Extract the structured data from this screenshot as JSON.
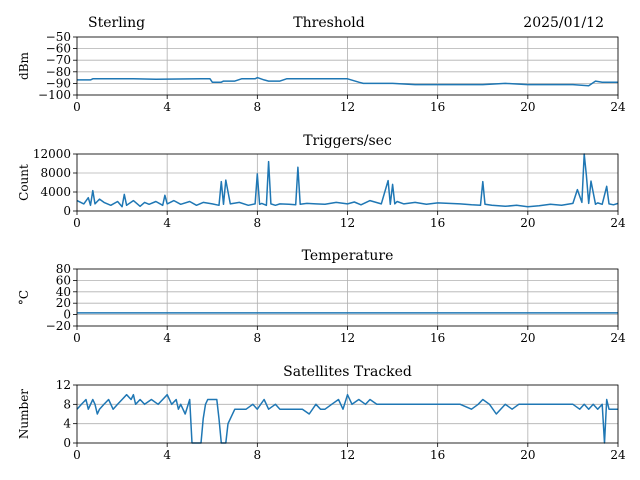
{
  "header": {
    "left": "Sterling",
    "center": "Threshold",
    "right": "2025/01/12"
  },
  "style": {
    "line_color": "#1f77b4",
    "grid_color": "#b0b0b0"
  },
  "chart_data": [
    {
      "type": "line",
      "title": "",
      "xlabel": "",
      "ylabel": "dBm",
      "xlim": [
        0,
        24
      ],
      "ylim": [
        -100,
        -50
      ],
      "xticks": [
        0,
        4,
        8,
        12,
        16,
        20,
        24
      ],
      "yticks": [
        -100,
        -90,
        -80,
        -70,
        -60,
        -50
      ],
      "ytick_labels": [
        "−100",
        "−90",
        "−80",
        "−70",
        "−60",
        "−50"
      ],
      "grid": true,
      "series": [
        {
          "x": [
            0,
            0.6,
            0.7,
            2.5,
            3.5,
            5.5,
            5.9,
            6.0,
            6.4,
            6.5,
            7.0,
            7.3,
            7.9,
            8.0,
            8.3,
            8.5,
            9.0,
            9.3,
            9.6,
            10.0,
            12.0,
            12.5,
            12.7,
            14.0,
            15.0,
            16.0,
            18.0,
            19.0,
            20.0,
            22.0,
            22.7,
            23.0,
            23.3,
            24.0
          ],
          "y": [
            -87,
            -87,
            -86,
            -86,
            -86.5,
            -86,
            -86,
            -89,
            -89,
            -88,
            -88,
            -86,
            -86,
            -85,
            -87,
            -88,
            -88,
            -86,
            -86,
            -86,
            -86,
            -89,
            -90,
            -90,
            -91,
            -91,
            -91,
            -90,
            -91,
            -91,
            -92,
            -88,
            -89,
            -89
          ]
        }
      ]
    },
    {
      "type": "line",
      "title": "Triggers/sec",
      "xlabel": "",
      "ylabel": "Count",
      "xlim": [
        0,
        24
      ],
      "ylim": [
        0,
        12000
      ],
      "xticks": [
        0,
        4,
        8,
        12,
        16,
        20,
        24
      ],
      "yticks": [
        0,
        4000,
        8000,
        12000
      ],
      "ytick_labels": [
        "0",
        "4000",
        "8000",
        "12000"
      ],
      "grid": true,
      "series": [
        {
          "x": [
            0,
            0.3,
            0.5,
            0.6,
            0.7,
            0.8,
            1.0,
            1.2,
            1.5,
            1.8,
            2.0,
            2.1,
            2.2,
            2.5,
            2.8,
            3.0,
            3.2,
            3.5,
            3.8,
            3.9,
            4.0,
            4.3,
            4.6,
            5.0,
            5.3,
            5.6,
            6.0,
            6.3,
            6.4,
            6.5,
            6.6,
            6.8,
            7.2,
            7.6,
            7.9,
            8.0,
            8.1,
            8.2,
            8.4,
            8.5,
            8.6,
            8.8,
            9.0,
            9.4,
            9.7,
            9.8,
            9.9,
            10.2,
            10.6,
            11.0,
            11.5,
            12.0,
            12.3,
            12.6,
            13.0,
            13.5,
            13.8,
            13.9,
            14.0,
            14.1,
            14.2,
            14.5,
            15.0,
            15.5,
            16.0,
            16.5,
            17.0,
            17.5,
            17.9,
            18.0,
            18.1,
            18.4,
            19.0,
            19.5,
            20.0,
            20.5,
            21.0,
            21.5,
            22.0,
            22.2,
            22.4,
            22.5,
            22.6,
            22.7,
            22.8,
            23.0,
            23.1,
            23.3,
            23.5,
            23.6,
            23.8,
            24.0
          ],
          "y": [
            2200,
            1500,
            2800,
            1200,
            4300,
            1500,
            2500,
            1800,
            1200,
            2000,
            900,
            3500,
            1200,
            2200,
            1000,
            1800,
            1400,
            2000,
            1200,
            3300,
            1500,
            2200,
            1400,
            2000,
            1200,
            1800,
            1500,
            1200,
            6200,
            1400,
            6500,
            1500,
            1800,
            1200,
            1500,
            7800,
            1400,
            1600,
            1200,
            10400,
            1500,
            1200,
            1500,
            1400,
            1300,
            9200,
            1400,
            1600,
            1500,
            1400,
            1800,
            1500,
            1900,
            1300,
            2200,
            1500,
            6400,
            1400,
            5600,
            1500,
            2000,
            1500,
            1800,
            1400,
            1700,
            1600,
            1500,
            1300,
            1200,
            6200,
            1400,
            1200,
            1000,
            1200,
            900,
            1100,
            1400,
            1200,
            1600,
            4500,
            1800,
            12000,
            7500,
            1600,
            6300,
            1400,
            1700,
            1400,
            5200,
            1500,
            1300,
            1600
          ]
        }
      ]
    },
    {
      "type": "line",
      "title": "Temperature",
      "xlabel": "",
      "ylabel": "°C",
      "xlim": [
        0,
        24
      ],
      "ylim": [
        -20,
        80
      ],
      "xticks": [
        0,
        4,
        8,
        12,
        16,
        20,
        24
      ],
      "yticks": [
        -20,
        0,
        20,
        40,
        60,
        80
      ],
      "ytick_labels": [
        "−20",
        "0",
        "20",
        "40",
        "60",
        "80"
      ],
      "grid": true,
      "series": [
        {
          "x": [
            0,
            24
          ],
          "y": [
            3,
            3
          ]
        }
      ]
    },
    {
      "type": "line",
      "title": "Satellites Tracked",
      "xlabel": "",
      "ylabel": "Number",
      "xlim": [
        0,
        24
      ],
      "ylim": [
        0,
        12
      ],
      "xticks": [
        0,
        4,
        8,
        12,
        16,
        20,
        24
      ],
      "yticks": [
        0,
        4,
        8,
        12
      ],
      "ytick_labels": [
        "0",
        "4",
        "8",
        "12"
      ],
      "grid": true,
      "series": [
        {
          "x": [
            0,
            0.2,
            0.4,
            0.5,
            0.7,
            0.8,
            0.9,
            1.0,
            1.2,
            1.4,
            1.6,
            1.8,
            2.0,
            2.2,
            2.4,
            2.5,
            2.6,
            2.8,
            3.0,
            3.3,
            3.6,
            3.8,
            4.0,
            4.2,
            4.4,
            4.5,
            4.6,
            4.8,
            5.0,
            5.1,
            5.2,
            5.5,
            5.6,
            5.7,
            5.8,
            6.2,
            6.3,
            6.4,
            6.5,
            6.6,
            6.7,
            7.0,
            7.2,
            7.5,
            7.8,
            8.0,
            8.3,
            8.5,
            8.8,
            9.0,
            9.5,
            10.0,
            10.3,
            10.6,
            10.8,
            11.0,
            11.3,
            11.6,
            11.8,
            12.0,
            12.2,
            12.5,
            12.8,
            13.0,
            13.3,
            13.6,
            14.0,
            14.5,
            15.0,
            15.5,
            16.0,
            16.5,
            17.0,
            17.5,
            17.8,
            18.0,
            18.3,
            18.6,
            19.0,
            19.3,
            19.6,
            20.0,
            20.5,
            21.0,
            21.5,
            22.0,
            22.3,
            22.5,
            22.7,
            22.9,
            23.1,
            23.3,
            23.4,
            23.5,
            23.6,
            23.8,
            24.0
          ],
          "y": [
            7,
            8,
            9,
            7,
            9,
            8,
            6,
            7,
            8,
            9,
            7,
            8,
            9,
            10,
            9,
            10,
            8,
            9,
            8,
            9,
            8,
            9,
            10,
            8,
            9,
            7,
            8,
            6,
            9,
            0,
            0,
            0,
            5,
            8,
            9,
            9,
            5,
            0,
            0,
            0,
            4,
            7,
            7,
            7,
            8,
            7,
            9,
            7,
            8,
            7,
            7,
            7,
            6,
            8,
            7,
            7,
            8,
            9,
            7,
            10,
            8,
            9,
            8,
            9,
            8,
            8,
            8,
            8,
            8,
            8,
            8,
            8,
            8,
            7,
            8,
            9,
            8,
            6,
            8,
            7,
            8,
            8,
            8,
            8,
            8,
            8,
            7,
            8,
            7,
            8,
            7,
            8,
            0,
            9,
            7,
            7,
            7
          ]
        }
      ]
    }
  ]
}
